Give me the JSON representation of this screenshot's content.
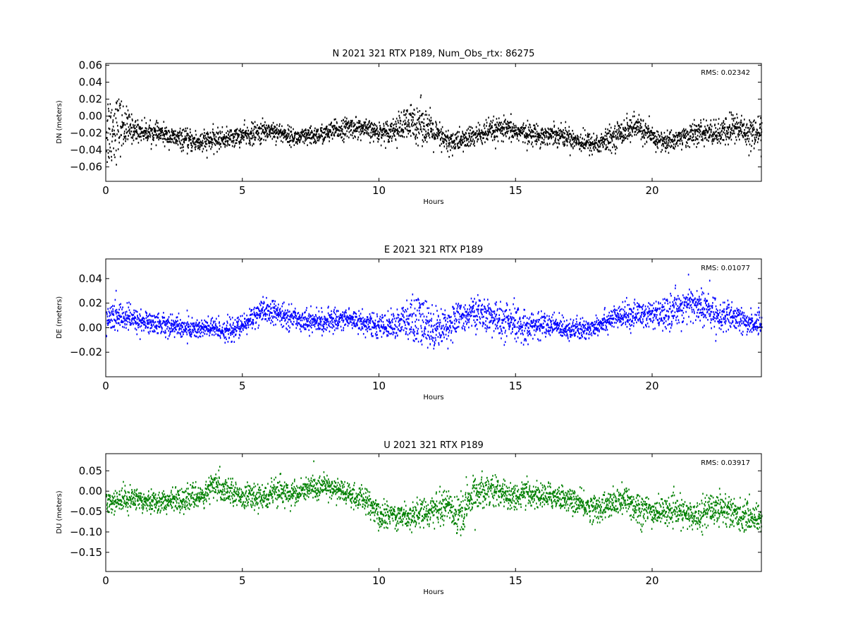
{
  "chart_data": [
    {
      "type": "scatter",
      "title": "N 2021 321 RTX  P189, Num_Obs_rtx: 86275",
      "xlabel": "Hours",
      "ylabel": "DN (meters)",
      "xlim": [
        0,
        24
      ],
      "ylim": [
        -0.077,
        0.062
      ],
      "xticks": [
        0,
        5,
        10,
        15,
        20
      ],
      "yticks": [
        -0.06,
        -0.04,
        -0.02,
        0.0,
        0.02,
        0.04,
        0.06
      ],
      "ytick_labels": [
        "−0.06",
        "−0.04",
        "−0.02",
        "0.00",
        "0.02",
        "0.04",
        "0.06"
      ],
      "annotation": "RMS:  0.02342",
      "annotation_color": "#0000ff",
      "color": "#000000",
      "series": [
        {
          "x": [
            0,
            0.5,
            1,
            1.5,
            2,
            2.5,
            3,
            3.5,
            4,
            4.5,
            5,
            5.5,
            6,
            6.5,
            7,
            7.5,
            8,
            8.5,
            9,
            9.5,
            10,
            10.5,
            11,
            11.5,
            12,
            12.5,
            13,
            13.5,
            14,
            14.5,
            15,
            15.5,
            16,
            16.5,
            17,
            17.5,
            18,
            18.5,
            19,
            19.5,
            20,
            20.5,
            21,
            21.5,
            22,
            22.5,
            23,
            23.5,
            24
          ],
          "y": [
            -0.015,
            -0.01,
            -0.015,
            -0.018,
            -0.02,
            -0.025,
            -0.028,
            -0.03,
            -0.027,
            -0.025,
            -0.022,
            -0.02,
            -0.015,
            -0.02,
            -0.025,
            -0.023,
            -0.02,
            -0.015,
            -0.012,
            -0.015,
            -0.018,
            -0.015,
            -0.01,
            -0.005,
            -0.02,
            -0.03,
            -0.028,
            -0.022,
            -0.018,
            -0.015,
            -0.017,
            -0.02,
            -0.022,
            -0.02,
            -0.025,
            -0.03,
            -0.032,
            -0.025,
            -0.015,
            -0.012,
            -0.025,
            -0.03,
            -0.025,
            -0.02,
            -0.018,
            -0.02,
            -0.012,
            -0.018,
            -0.02
          ],
          "spread": [
            0.045,
            0.03,
            0.012,
            0.01,
            0.01,
            0.01,
            0.011,
            0.013,
            0.011,
            0.01,
            0.01,
            0.012,
            0.011,
            0.009,
            0.009,
            0.01,
            0.01,
            0.011,
            0.011,
            0.01,
            0.01,
            0.012,
            0.02,
            0.022,
            0.016,
            0.013,
            0.012,
            0.012,
            0.013,
            0.012,
            0.011,
            0.011,
            0.011,
            0.011,
            0.011,
            0.011,
            0.012,
            0.012,
            0.014,
            0.013,
            0.011,
            0.011,
            0.011,
            0.012,
            0.012,
            0.014,
            0.018,
            0.016,
            0.016
          ]
        }
      ]
    },
    {
      "type": "scatter",
      "title": "E 2021 321 RTX  P189",
      "xlabel": "Hours",
      "ylabel": "DE (meters)",
      "xlim": [
        0,
        24
      ],
      "ylim": [
        -0.04,
        0.056
      ],
      "xticks": [
        0,
        5,
        10,
        15,
        20
      ],
      "yticks": [
        -0.02,
        0.0,
        0.02,
        0.04
      ],
      "ytick_labels": [
        "−0.02",
        "0.00",
        "0.02",
        "0.04"
      ],
      "annotation": "RMS:  0.01077",
      "annotation_color": "#0000ff",
      "color": "#0000ff",
      "series": [
        {
          "x": [
            0,
            0.5,
            1,
            1.5,
            2,
            2.5,
            3,
            3.5,
            4,
            4.5,
            5,
            5.5,
            6,
            6.5,
            7,
            7.5,
            8,
            8.5,
            9,
            9.5,
            10,
            10.5,
            11,
            11.5,
            12,
            12.5,
            13,
            13.5,
            14,
            14.5,
            15,
            15.5,
            16,
            16.5,
            17,
            17.5,
            18,
            18.5,
            19,
            19.5,
            20,
            20.5,
            21,
            21.5,
            22,
            22.5,
            23,
            23.5,
            24
          ],
          "y": [
            0.008,
            0.01,
            0.007,
            0.005,
            0.004,
            0.002,
            0.0,
            0.0,
            0.0,
            -0.002,
            0.002,
            0.012,
            0.014,
            0.01,
            0.008,
            0.006,
            0.005,
            0.008,
            0.008,
            0.004,
            0.002,
            0.003,
            0.006,
            0.005,
            0.0,
            0.003,
            0.01,
            0.013,
            0.01,
            0.005,
            0.003,
            0.002,
            0.003,
            0.002,
            0.0,
            -0.002,
            0.004,
            0.008,
            0.01,
            0.012,
            0.01,
            0.012,
            0.018,
            0.02,
            0.015,
            0.01,
            0.008,
            0.005,
            0.004
          ],
          "spread": [
            0.011,
            0.01,
            0.009,
            0.008,
            0.008,
            0.008,
            0.008,
            0.008,
            0.008,
            0.008,
            0.008,
            0.009,
            0.009,
            0.008,
            0.008,
            0.008,
            0.008,
            0.008,
            0.008,
            0.008,
            0.008,
            0.009,
            0.016,
            0.021,
            0.015,
            0.012,
            0.011,
            0.011,
            0.011,
            0.014,
            0.014,
            0.01,
            0.009,
            0.008,
            0.008,
            0.008,
            0.008,
            0.008,
            0.009,
            0.01,
            0.01,
            0.011,
            0.013,
            0.014,
            0.013,
            0.011,
            0.01,
            0.009,
            0.009
          ]
        }
      ]
    },
    {
      "type": "scatter",
      "title": "U 2021 321 RTX  P189",
      "xlabel": "Hours",
      "ylabel": "DU (meters)",
      "xlim": [
        0,
        24
      ],
      "ylim": [
        -0.197,
        0.092
      ],
      "xticks": [
        0,
        5,
        10,
        15,
        20
      ],
      "yticks": [
        -0.15,
        -0.1,
        -0.05,
        0.0,
        0.05
      ],
      "ytick_labels": [
        "−0.15",
        "−0.10",
        "−0.05",
        "0.00",
        "0.05"
      ],
      "annotation": "RMS:  0.03917",
      "annotation_color": "#0000ff",
      "color": "#008000",
      "series": [
        {
          "x": [
            0,
            0.5,
            1,
            1.5,
            2,
            2.5,
            3,
            3.5,
            4,
            4.5,
            5,
            5.5,
            6,
            6.5,
            7,
            7.5,
            8,
            8.5,
            9,
            9.5,
            10,
            10.5,
            11,
            11.5,
            12,
            12.5,
            13,
            13.5,
            14,
            14.5,
            15,
            15.5,
            16,
            16.5,
            17,
            17.5,
            18,
            18.5,
            19,
            19.5,
            20,
            20.5,
            21,
            21.5,
            22,
            22.5,
            23,
            23.5,
            24
          ],
          "y": [
            -0.025,
            -0.02,
            -0.015,
            -0.02,
            -0.025,
            -0.02,
            -0.015,
            -0.01,
            0.015,
            0.005,
            -0.01,
            -0.015,
            -0.005,
            0.0,
            -0.005,
            0.01,
            0.015,
            0.005,
            -0.01,
            -0.02,
            -0.06,
            -0.055,
            -0.06,
            -0.05,
            -0.045,
            -0.03,
            -0.06,
            0.0,
            0.01,
            -0.005,
            -0.01,
            -0.005,
            -0.01,
            -0.01,
            -0.02,
            -0.035,
            -0.04,
            -0.03,
            -0.02,
            -0.04,
            -0.05,
            -0.045,
            -0.05,
            -0.06,
            -0.045,
            -0.035,
            -0.055,
            -0.06,
            -0.065
          ],
          "spread": [
            0.025,
            0.025,
            0.025,
            0.025,
            0.025,
            0.025,
            0.025,
            0.025,
            0.035,
            0.025,
            0.025,
            0.025,
            0.03,
            0.03,
            0.025,
            0.028,
            0.025,
            0.025,
            0.025,
            0.028,
            0.03,
            0.028,
            0.03,
            0.03,
            0.03,
            0.035,
            0.06,
            0.035,
            0.035,
            0.03,
            0.03,
            0.028,
            0.028,
            0.028,
            0.025,
            0.028,
            0.03,
            0.03,
            0.035,
            0.04,
            0.03,
            0.028,
            0.03,
            0.03,
            0.035,
            0.04,
            0.035,
            0.03,
            0.03
          ]
        }
      ]
    }
  ]
}
